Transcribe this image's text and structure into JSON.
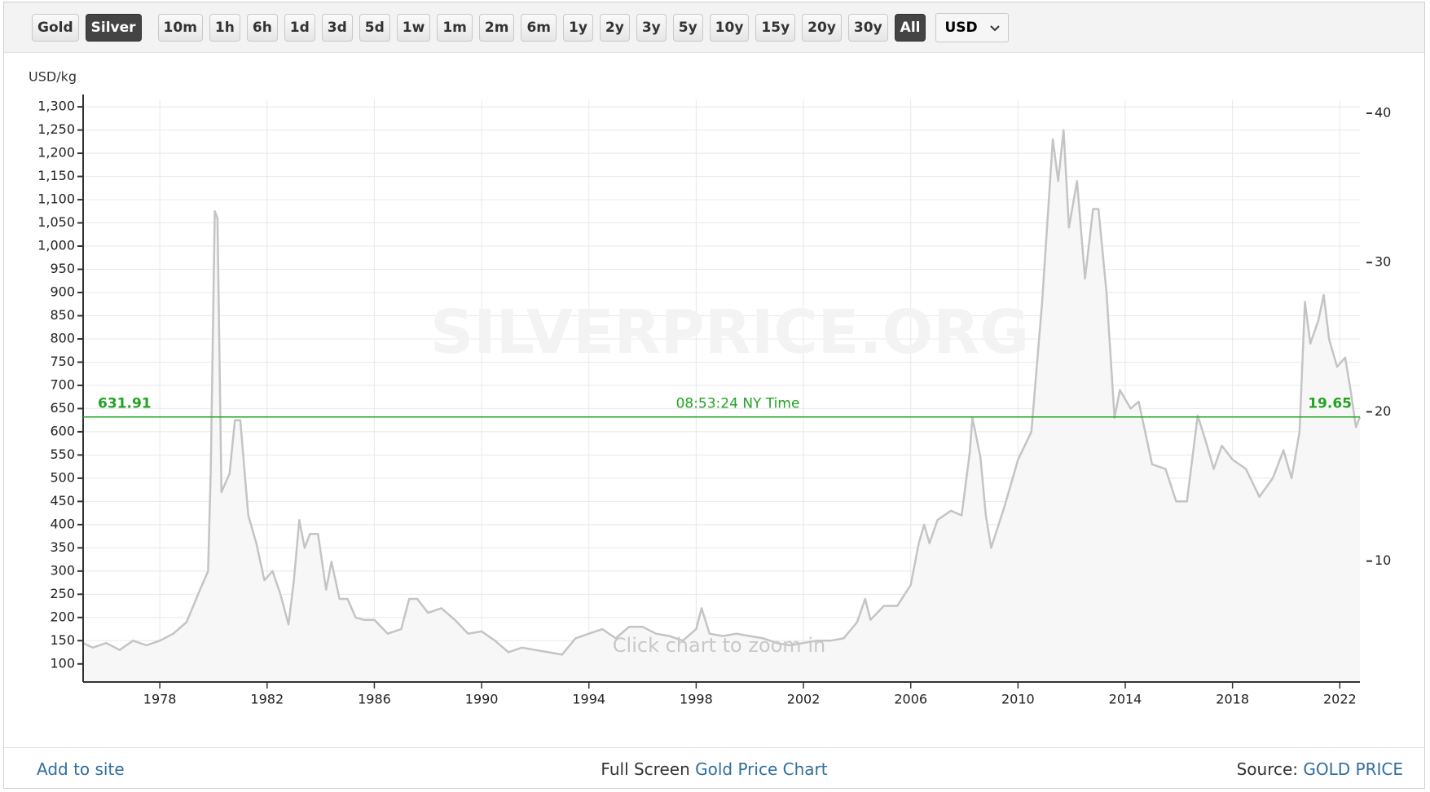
{
  "toolbar": {
    "buttons": [
      {
        "label": "Gold",
        "active": false
      },
      {
        "label": "Silver",
        "active": true
      },
      {
        "label": "10m",
        "active": false
      },
      {
        "label": "1h",
        "active": false
      },
      {
        "label": "6h",
        "active": false
      },
      {
        "label": "1d",
        "active": false
      },
      {
        "label": "3d",
        "active": false
      },
      {
        "label": "5d",
        "active": false
      },
      {
        "label": "1w",
        "active": false
      },
      {
        "label": "1m",
        "active": false
      },
      {
        "label": "2m",
        "active": false
      },
      {
        "label": "6m",
        "active": false
      },
      {
        "label": "1y",
        "active": false
      },
      {
        "label": "2y",
        "active": false
      },
      {
        "label": "3y",
        "active": false
      },
      {
        "label": "5y",
        "active": false
      },
      {
        "label": "10y",
        "active": false
      },
      {
        "label": "15y",
        "active": false
      },
      {
        "label": "20y",
        "active": false
      },
      {
        "label": "30y",
        "active": false
      },
      {
        "label": "All",
        "active": true
      }
    ],
    "currency": "USD"
  },
  "chart_data": {
    "type": "line",
    "y_label": "USD/kg",
    "watermark": "SILVERPRICE.ORG",
    "hint": "Click chart to zoom in",
    "color": "#c4c4c4",
    "area_color": "#f7f7f7",
    "grid": true,
    "x": [
      1975.14,
      1975.5,
      1976.0,
      1976.5,
      1977.0,
      1977.5,
      1978.0,
      1978.5,
      1979.0,
      1979.5,
      1979.8,
      1979.9,
      1980.05,
      1980.15,
      1980.3,
      1980.6,
      1980.8,
      1981.0,
      1981.3,
      1981.6,
      1981.9,
      1982.2,
      1982.5,
      1982.8,
      1983.0,
      1983.2,
      1983.4,
      1983.6,
      1983.9,
      1984.2,
      1984.4,
      1984.7,
      1985.0,
      1985.3,
      1985.6,
      1986.0,
      1986.5,
      1987.0,
      1987.3,
      1987.6,
      1988.0,
      1988.5,
      1989.0,
      1989.5,
      1990.0,
      1990.5,
      1991.0,
      1991.5,
      1992.0,
      1992.5,
      1993.0,
      1993.5,
      1994.0,
      1994.5,
      1995.0,
      1995.5,
      1996.0,
      1996.5,
      1997.0,
      1997.5,
      1998.0,
      1998.2,
      1998.5,
      1999.0,
      1999.5,
      2000.0,
      2000.5,
      2001.0,
      2001.5,
      2002.0,
      2002.5,
      2003.0,
      2003.5,
      2004.0,
      2004.3,
      2004.5,
      2005.0,
      2005.5,
      2006.0,
      2006.3,
      2006.5,
      2006.7,
      2007.0,
      2007.5,
      2007.9,
      2008.2,
      2008.3,
      2008.6,
      2008.8,
      2009.0,
      2009.5,
      2010.0,
      2010.5,
      2010.9,
      2011.3,
      2011.5,
      2011.7,
      2011.9,
      2012.2,
      2012.5,
      2012.8,
      2013.0,
      2013.3,
      2013.6,
      2013.8,
      2014.2,
      2014.5,
      2015.0,
      2015.5,
      2015.9,
      2016.3,
      2016.7,
      2017.0,
      2017.3,
      2017.6,
      2018.0,
      2018.5,
      2019.0,
      2019.5,
      2019.9,
      2020.2,
      2020.5,
      2020.7,
      2020.9,
      2021.2,
      2021.4,
      2021.6,
      2021.9,
      2022.2,
      2022.4,
      2022.6,
      2022.75
    ],
    "values": [
      145,
      135,
      145,
      130,
      150,
      140,
      150,
      165,
      190,
      260,
      300,
      520,
      1075,
      1060,
      470,
      510,
      625,
      625,
      420,
      360,
      280,
      300,
      250,
      185,
      280,
      410,
      350,
      380,
      380,
      260,
      320,
      240,
      240,
      200,
      195,
      195,
      165,
      175,
      240,
      240,
      210,
      220,
      195,
      165,
      170,
      150,
      125,
      135,
      130,
      125,
      120,
      155,
      165,
      175,
      155,
      180,
      180,
      165,
      160,
      150,
      175,
      220,
      165,
      160,
      165,
      160,
      155,
      145,
      140,
      145,
      150,
      150,
      155,
      190,
      240,
      195,
      225,
      225,
      270,
      360,
      400,
      360,
      410,
      430,
      420,
      555,
      630,
      545,
      420,
      350,
      440,
      540,
      600,
      880,
      1230,
      1140,
      1250,
      1040,
      1140,
      930,
      1080,
      1080,
      900,
      630,
      690,
      650,
      665,
      530,
      520,
      450,
      450,
      635,
      580,
      520,
      570,
      540,
      520,
      460,
      500,
      560,
      500,
      600,
      880,
      790,
      840,
      895,
      800,
      740,
      760,
      690,
      610,
      632
    ],
    "xlim": [
      1975.14,
      2022.75
    ],
    "xticks": [
      1978,
      1982,
      1986,
      1990,
      1994,
      1998,
      2002,
      2006,
      2010,
      2014,
      2018,
      2022
    ],
    "ylim": [
      61,
      1316
    ],
    "yticks": [
      100,
      150,
      200,
      250,
      300,
      350,
      400,
      450,
      500,
      550,
      600,
      650,
      700,
      750,
      800,
      850,
      900,
      950,
      {
        "value": 1000,
        "label": "1,000"
      },
      {
        "value": 1050,
        "label": "1,050"
      },
      {
        "value": 1100,
        "label": "1,100"
      },
      {
        "value": 1150,
        "label": "1,150"
      },
      {
        "value": 1200,
        "label": "1,200"
      },
      {
        "value": 1250,
        "label": "1,250"
      },
      {
        "value": 1300,
        "label": "1,300"
      }
    ],
    "y2lim": [
      1.9,
      40.93
    ],
    "y2ticks": [
      10,
      20,
      30,
      40
    ],
    "current": {
      "value": 631.91,
      "value_y2": 19.65,
      "time_label": "08:53:24 NY Time",
      "color": "#22a322"
    }
  },
  "footer": {
    "add": "Add to site",
    "full_screen": "Full Screen",
    "chart_link": "Gold Price Chart",
    "source": "Source:",
    "source_link": "GOLD PRICE"
  }
}
